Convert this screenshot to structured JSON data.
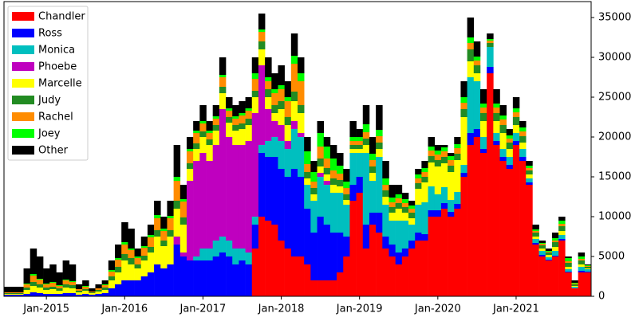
{
  "chart_data": {
    "type": "stacked_bar",
    "categories": [
      null,
      null,
      null,
      null,
      null,
      null,
      "Jan-2015",
      null,
      null,
      null,
      null,
      null,
      null,
      null,
      null,
      null,
      null,
      null,
      "Jan-2016",
      null,
      null,
      null,
      null,
      null,
      null,
      null,
      null,
      null,
      null,
      null,
      "Jan-2017",
      null,
      null,
      null,
      null,
      null,
      null,
      null,
      null,
      null,
      null,
      null,
      "Jan-2018",
      null,
      null,
      null,
      null,
      null,
      null,
      null,
      null,
      null,
      null,
      null,
      "Jan-2019",
      null,
      null,
      null,
      null,
      null,
      null,
      null,
      null,
      null,
      null,
      null,
      "Jan-2020",
      null,
      null,
      null,
      null,
      null,
      null,
      null,
      null,
      null,
      null,
      null,
      "Jan-2021",
      null,
      null,
      null,
      null,
      null,
      null,
      null,
      null,
      null,
      null,
      null
    ],
    "series": [
      {
        "name": "Chandler",
        "color": "#ff0000",
        "values": [
          0,
          0,
          0,
          0,
          0,
          0,
          0,
          0,
          0,
          0,
          0,
          0,
          0,
          0,
          0,
          0,
          0,
          0,
          0,
          0,
          0,
          0,
          0,
          0,
          0,
          0,
          0,
          0,
          0,
          0,
          0,
          0,
          0,
          0,
          0,
          0,
          0,
          0,
          6000,
          10000,
          9500,
          9000,
          7000,
          6000,
          5000,
          5000,
          4000,
          2000,
          2000,
          2000,
          2000,
          3000,
          5000,
          12000,
          13000,
          6000,
          9000,
          8000,
          6000,
          5000,
          4000,
          5000,
          6000,
          7000,
          7000,
          10000,
          10000,
          11000,
          10000,
          11000,
          15000,
          19000,
          20000,
          18000,
          28000,
          19000,
          17000,
          16000,
          19000,
          17000,
          14000,
          6500,
          5000,
          4500,
          5000,
          7000,
          3000,
          1000,
          3000,
          3000
        ]
      },
      {
        "name": "Ross",
        "color": "#0000ff",
        "values": [
          200,
          200,
          200,
          300,
          500,
          400,
          300,
          300,
          300,
          400,
          400,
          200,
          300,
          200,
          300,
          400,
          1000,
          1500,
          2000,
          2000,
          2000,
          2500,
          3000,
          4000,
          3500,
          4000,
          6500,
          5000,
          4500,
          4500,
          4500,
          4500,
          5000,
          5500,
          5000,
          4000,
          4500,
          4000,
          3000,
          8000,
          8000,
          8500,
          9000,
          9000,
          11000,
          10000,
          7000,
          6000,
          8000,
          7000,
          6000,
          5000,
          2500,
          2000,
          2000,
          3000,
          1500,
          2500,
          1500,
          1500,
          1500,
          1000,
          1000,
          1000,
          800,
          800,
          800,
          700,
          600,
          600,
          500,
          1500,
          1000,
          500,
          800,
          500,
          500,
          500,
          500,
          500,
          300,
          200,
          200,
          100,
          100,
          200,
          100,
          0,
          200,
          100
        ]
      },
      {
        "name": "Monica",
        "color": "#00bfbf",
        "values": [
          0,
          0,
          0,
          0,
          0,
          0,
          0,
          0,
          0,
          0,
          0,
          0,
          0,
          0,
          0,
          0,
          0,
          0,
          0,
          0,
          0,
          0,
          0,
          0,
          0,
          0,
          0,
          0,
          0,
          500,
          1500,
          1500,
          2000,
          2000,
          2000,
          2000,
          1500,
          1500,
          1000,
          1000,
          2000,
          2500,
          3500,
          3500,
          5000,
          5000,
          3000,
          4000,
          5000,
          5000,
          5000,
          5000,
          4000,
          4000,
          3000,
          9000,
          4000,
          7000,
          4000,
          3000,
          4000,
          3500,
          2000,
          3500,
          4000,
          3000,
          2000,
          2000,
          1500,
          1500,
          1000,
          7000,
          6000,
          1500,
          2500,
          1000,
          1000,
          1000,
          1000,
          1000,
          500,
          500,
          500,
          300,
          600,
          500,
          300,
          200,
          500,
          300
        ]
      },
      {
        "name": "Phoebe",
        "color": "#bf00bf",
        "values": [
          0,
          0,
          0,
          0,
          0,
          0,
          0,
          0,
          0,
          0,
          0,
          0,
          0,
          0,
          0,
          0,
          0,
          0,
          0,
          0,
          0,
          0,
          0,
          0,
          0,
          0,
          1000,
          500,
          10000,
          12000,
          12000,
          11000,
          12000,
          16000,
          13000,
          13000,
          13000,
          14000,
          13000,
          10000,
          4000,
          2000,
          2000,
          1000,
          1000,
          500,
          0,
          0,
          500,
          500,
          0,
          0,
          0,
          0,
          0,
          0,
          0,
          0,
          0,
          0,
          0,
          0,
          0,
          0,
          0,
          0,
          0,
          0,
          0,
          0,
          0,
          0,
          0,
          0,
          0,
          0,
          0,
          0,
          0,
          0,
          0,
          0,
          0,
          0,
          0,
          0,
          0,
          0,
          0,
          0
        ]
      },
      {
        "name": "Marcelle",
        "color": "#ffff00",
        "values": [
          100,
          100,
          100,
          500,
          800,
          700,
          500,
          600,
          400,
          700,
          600,
          300,
          400,
          200,
          300,
          400,
          1000,
          1500,
          2500,
          2000,
          1500,
          2000,
          2500,
          3500,
          2800,
          3500,
          3500,
          3500,
          1500,
          1500,
          2000,
          2000,
          1800,
          2000,
          1800,
          1800,
          2000,
          2000,
          2000,
          2000,
          1500,
          1000,
          2000,
          2000,
          2500,
          2500,
          800,
          800,
          800,
          800,
          1000,
          800,
          600,
          500,
          500,
          1000,
          1000,
          1000,
          1000,
          1000,
          1500,
          1000,
          800,
          2000,
          2500,
          3000,
          3500,
          3000,
          3500,
          4000,
          6000,
          2000,
          1000,
          2000,
          0,
          1500,
          2000,
          1000,
          1000,
          800,
          500,
          300,
          300,
          300,
          500,
          500,
          300,
          100,
          300,
          100
        ]
      },
      {
        "name": "Judy",
        "color": "#228b22",
        "values": [
          100,
          100,
          100,
          300,
          500,
          400,
          300,
          300,
          300,
          400,
          400,
          200,
          200,
          100,
          200,
          300,
          500,
          700,
          800,
          800,
          500,
          600,
          700,
          800,
          700,
          800,
          1000,
          900,
          700,
          700,
          700,
          700,
          700,
          800,
          700,
          700,
          700,
          800,
          800,
          1000,
          1000,
          1000,
          1000,
          1000,
          1200,
          1000,
          800,
          800,
          1000,
          800,
          800,
          800,
          700,
          500,
          500,
          800,
          800,
          800,
          800,
          700,
          700,
          700,
          700,
          700,
          700,
          800,
          800,
          800,
          800,
          800,
          1000,
          1500,
          1000,
          1000,
          500,
          1000,
          1000,
          800,
          1000,
          800,
          500,
          500,
          400,
          300,
          600,
          600,
          500,
          200,
          500,
          200
        ]
      },
      {
        "name": "Rachel",
        "color": "#ff8c00",
        "values": [
          100,
          100,
          100,
          400,
          800,
          600,
          400,
          500,
          300,
          500,
          400,
          200,
          300,
          100,
          200,
          300,
          600,
          900,
          1200,
          1000,
          800,
          1000,
          1200,
          1500,
          1200,
          1500,
          2500,
          2000,
          1500,
          1300,
          1000,
          800,
          800,
          1200,
          800,
          800,
          1000,
          1000,
          1500,
          1200,
          1000,
          1500,
          1500,
          2000,
          3500,
          3000,
          1000,
          800,
          1500,
          1200,
          1000,
          800,
          800,
          500,
          500,
          800,
          800,
          800,
          700,
          600,
          600,
          500,
          500,
          600,
          600,
          700,
          700,
          700,
          700,
          700,
          800,
          800,
          600,
          700,
          300,
          700,
          700,
          500,
          600,
          600,
          300,
          200,
          200,
          100,
          200,
          300,
          200,
          100,
          200,
          100
        ]
      },
      {
        "name": "Joey",
        "color": "#00ff00",
        "values": [
          0,
          0,
          0,
          100,
          200,
          100,
          100,
          100,
          100,
          100,
          100,
          0,
          100,
          0,
          0,
          100,
          200,
          200,
          300,
          200,
          200,
          200,
          300,
          400,
          300,
          300,
          500,
          300,
          300,
          300,
          300,
          300,
          300,
          300,
          300,
          300,
          300,
          300,
          700,
          300,
          500,
          500,
          500,
          500,
          1000,
          1000,
          1600,
          1200,
          1700,
          1500,
          1500,
          1000,
          800,
          500,
          500,
          1000,
          800,
          800,
          800,
          600,
          500,
          500,
          400,
          500,
          500,
          500,
          500,
          500,
          500,
          500,
          700,
          700,
          500,
          500,
          200,
          500,
          500,
          400,
          500,
          500,
          300,
          200,
          100,
          100,
          300,
          400,
          400,
          100,
          300,
          100
        ]
      },
      {
        "name": "Other",
        "color": "#000000",
        "values": [
          700,
          700,
          700,
          1900,
          3200,
          2800,
          1900,
          2200,
          1600,
          2400,
          2100,
          600,
          700,
          400,
          500,
          500,
          1200,
          1700,
          2500,
          2500,
          1000,
          1200,
          1300,
          1800,
          1500,
          1900,
          4000,
          1800,
          1500,
          1200,
          2000,
          1200,
          1400,
          2200,
          1400,
          1400,
          1500,
          1400,
          2000,
          2000,
          2500,
          2000,
          2500,
          2000,
          2800,
          2000,
          1800,
          1400,
          1500,
          1200,
          1700,
          1600,
          1600,
          2000,
          1000,
          2400,
          2100,
          3100,
          2200,
          1600,
          1200,
          800,
          600,
          700,
          900,
          1200,
          700,
          300,
          400,
          900,
          2000,
          2500,
          1900,
          1800,
          700,
          1800,
          1300,
          800,
          1400,
          800,
          600,
          600,
          300,
          300,
          700,
          500,
          200,
          300,
          500,
          100
        ]
      }
    ],
    "ylim": [
      0,
      37000
    ],
    "yticks": [
      0,
      5000,
      10000,
      15000,
      20000,
      25000,
      30000,
      35000
    ],
    "legend": "upper left"
  }
}
